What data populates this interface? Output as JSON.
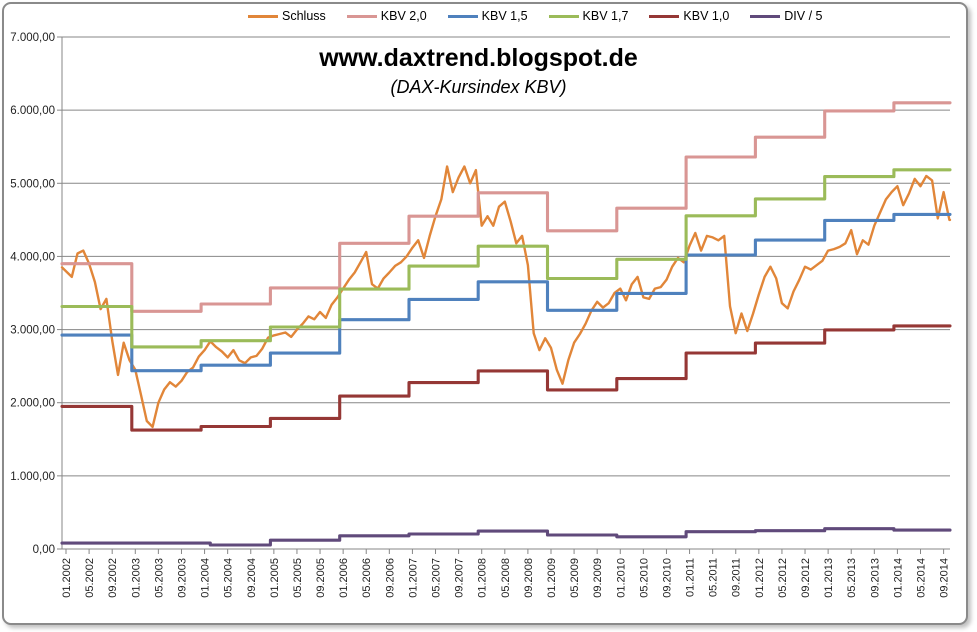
{
  "chart_data": {
    "type": "line",
    "title": "www.daxtrend.blogspot.de",
    "subtitle": "(DAX-Kursindex KBV)",
    "xlabel": "",
    "ylabel": "",
    "grid": "horizontal",
    "legend_position": "top",
    "plot_border_color": "#8a8a8a",
    "gridline_color": "#878787",
    "y_axis": {
      "min": 0,
      "max": 7000,
      "tick_step": 1000,
      "tick_values": [
        0,
        1000,
        2000,
        3000,
        4000,
        5000,
        6000,
        7000
      ],
      "tick_labels": [
        "0,00",
        "1.000,00",
        "2.000,00",
        "3.000,00",
        "4.000,00",
        "5.000,00",
        "6.000,00",
        "7.000,00"
      ]
    },
    "x_axis": {
      "unit": "month index from Jan 2002",
      "months_per_tick": 4,
      "tick_labels": [
        "01.2002",
        "05.2002",
        "09.2002",
        "01.2003",
        "05.2003",
        "09.2003",
        "01.2004",
        "05.2004",
        "09.2004",
        "01.2005",
        "05.2005",
        "09.2005",
        "01.2006",
        "05.2006",
        "09.2006",
        "01.2007",
        "05.2007",
        "09.2007",
        "01.2008",
        "05.2008",
        "09.2008",
        "01.2009",
        "05.2009",
        "09.2009",
        "01.2010",
        "05.2010",
        "09.2010",
        "01.2011",
        "05.2011",
        "09.2011",
        "01.2012",
        "05.2012",
        "09.2012",
        "01.2013",
        "05.2013",
        "09.2013",
        "01.2014",
        "05.2014",
        "09.2014"
      ]
    },
    "series": [
      {
        "name": "Schluss",
        "color": "#E18639",
        "style": "line",
        "start_month": 0,
        "monthly_values": [
          3850,
          3720,
          4040,
          4080,
          3900,
          3650,
          3280,
          3420,
          2850,
          2380,
          2820,
          2580,
          2450,
          2100,
          1750,
          1670,
          2000,
          2180,
          2280,
          2220,
          2300,
          2420,
          2480,
          2630,
          2720,
          2840,
          2760,
          2700,
          2620,
          2720,
          2580,
          2540,
          2620,
          2640,
          2740,
          2890,
          2920,
          2940,
          2960,
          2900,
          3000,
          3080,
          3180,
          3140,
          3240,
          3160,
          3340,
          3440,
          3560,
          3680,
          3780,
          3920,
          4060,
          3620,
          3560,
          3700,
          3780,
          3870,
          3920,
          4000,
          4120,
          4220,
          3980,
          4280,
          4550,
          4780,
          5230,
          4880,
          5080,
          5230,
          5000,
          5180,
          4420,
          4550,
          4420,
          4680,
          4750,
          4480,
          4180,
          4280,
          3880,
          2950,
          2720,
          2880,
          2750,
          2450,
          2260,
          2580,
          2820,
          2940,
          3080,
          3260,
          3380,
          3300,
          3360,
          3500,
          3560,
          3400,
          3620,
          3720,
          3440,
          3420,
          3560,
          3580,
          3680,
          3860,
          3980,
          3920,
          4150,
          4320,
          4080,
          4280,
          4260,
          4220,
          4280,
          3320,
          2950,
          3220,
          2980,
          3220,
          3480,
          3720,
          3860,
          3700,
          3360,
          3290,
          3520,
          3680,
          3860,
          3820,
          3880,
          3940,
          4080,
          4100,
          4130,
          4180,
          4360,
          4030,
          4220,
          4160,
          4420,
          4600,
          4780,
          4880,
          4960,
          4700,
          4860,
          5060,
          4960,
          5100,
          5040,
          4520,
          4880,
          4500
        ]
      },
      {
        "name": "KBV 2,0",
        "color": "#D99694",
        "style": "step",
        "breaks": [
          [
            0,
            3900
          ],
          [
            11.4,
            3250
          ],
          [
            23.4,
            3350
          ],
          [
            35.4,
            3570
          ],
          [
            47.4,
            4180
          ],
          [
            59.4,
            4550
          ],
          [
            71.4,
            4870
          ],
          [
            83.4,
            4350
          ],
          [
            95.4,
            4660
          ],
          [
            107.4,
            5360
          ],
          [
            119.4,
            5630
          ],
          [
            131.4,
            5990
          ],
          [
            143.4,
            6100
          ]
        ]
      },
      {
        "name": "KBV 1,5",
        "color": "#4F81BD",
        "style": "step",
        "breaks": [
          [
            0,
            2925
          ],
          [
            11.4,
            2438
          ],
          [
            23.4,
            2513
          ],
          [
            35.4,
            2678
          ],
          [
            47.4,
            3135
          ],
          [
            59.4,
            3413
          ],
          [
            71.4,
            3653
          ],
          [
            83.4,
            3263
          ],
          [
            95.4,
            3495
          ],
          [
            107.4,
            4020
          ],
          [
            119.4,
            4223
          ],
          [
            131.4,
            4493
          ],
          [
            143.4,
            4575
          ]
        ]
      },
      {
        "name": "KBV 1,7",
        "color": "#9BBB59",
        "style": "step",
        "breaks": [
          [
            0,
            3315
          ],
          [
            11.4,
            2763
          ],
          [
            23.4,
            2848
          ],
          [
            35.4,
            3035
          ],
          [
            47.4,
            3553
          ],
          [
            59.4,
            3868
          ],
          [
            71.4,
            4140
          ],
          [
            83.4,
            3698
          ],
          [
            95.4,
            3961
          ],
          [
            107.4,
            4556
          ],
          [
            119.4,
            4786
          ],
          [
            131.4,
            5092
          ],
          [
            143.4,
            5185
          ]
        ]
      },
      {
        "name": "KBV 1,0",
        "color": "#953735",
        "style": "step",
        "breaks": [
          [
            0,
            1950
          ],
          [
            11.4,
            1625
          ],
          [
            23.4,
            1675
          ],
          [
            35.4,
            1785
          ],
          [
            47.4,
            2090
          ],
          [
            59.4,
            2275
          ],
          [
            71.4,
            2435
          ],
          [
            83.4,
            2175
          ],
          [
            95.4,
            2330
          ],
          [
            107.4,
            2680
          ],
          [
            119.4,
            2815
          ],
          [
            131.4,
            2995
          ],
          [
            143.4,
            3050
          ]
        ]
      },
      {
        "name": "DIV / 5",
        "color": "#604A7B",
        "style": "step",
        "breaks": [
          [
            0,
            80
          ],
          [
            25,
            55
          ],
          [
            35.4,
            120
          ],
          [
            47.4,
            180
          ],
          [
            59.4,
            205
          ],
          [
            71.4,
            245
          ],
          [
            83.4,
            192
          ],
          [
            95.4,
            167
          ],
          [
            107.4,
            236
          ],
          [
            119.4,
            250
          ],
          [
            131.4,
            278
          ],
          [
            143.4,
            258
          ]
        ]
      }
    ]
  }
}
